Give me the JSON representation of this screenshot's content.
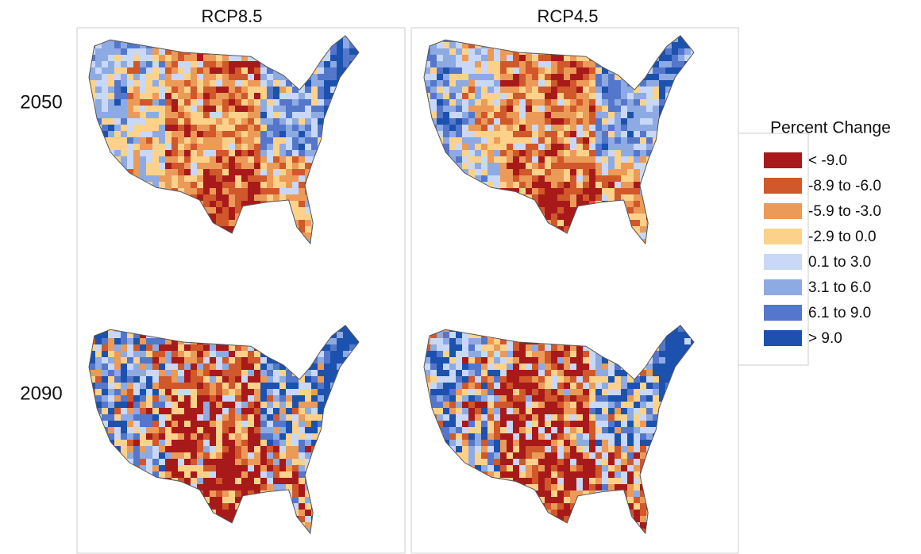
{
  "columns": [
    "RCP8.5",
    "RCP4.5"
  ],
  "rows": [
    "2050",
    "2090"
  ],
  "legend": {
    "title": "Percent Change",
    "items": [
      {
        "label": "< -9.0",
        "color": "#a81a1a"
      },
      {
        "label": "-8.9 to -6.0",
        "color": "#d0582b"
      },
      {
        "label": "-5.9 to -3.0",
        "color": "#ec9a58"
      },
      {
        "label": "-2.9 to 0.0",
        "color": "#fcd28a"
      },
      {
        "label": "0.1 to 3.0",
        "color": "#c8d8f6"
      },
      {
        "label": "3.1 to 6.0",
        "color": "#8eaae2"
      },
      {
        "label": "6.1 to 9.0",
        "color": "#5477cc"
      },
      {
        "label": "> 9.0",
        "color": "#1c52ae"
      }
    ]
  }
}
